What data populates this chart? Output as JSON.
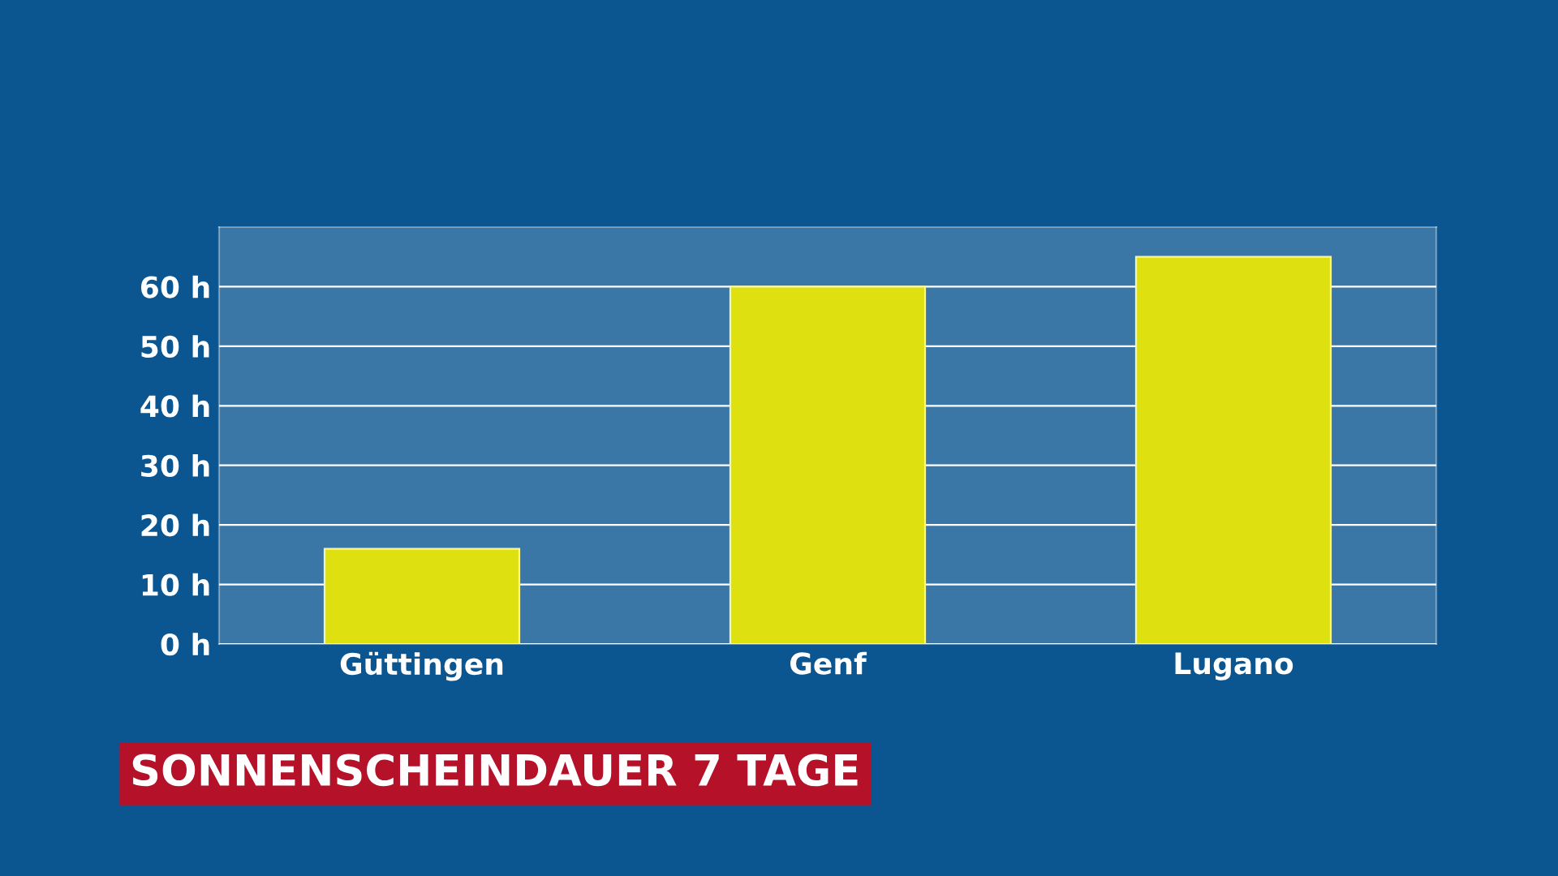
{
  "chart_data": {
    "type": "bar",
    "title": "SONNENSCHEINDAUER 7 TAGE",
    "categories": [
      "Güttingen",
      "Genf",
      "Lugano"
    ],
    "values": [
      16,
      60,
      65
    ],
    "color": "#dfe00f",
    "ylim": [
      0,
      70
    ],
    "yticks": [
      {
        "value": 0,
        "label": "0 h"
      },
      {
        "value": 10,
        "label": "10 h"
      },
      {
        "value": 20,
        "label": "20 h"
      },
      {
        "value": 30,
        "label": "30 h"
      },
      {
        "value": 40,
        "label": "40 h"
      },
      {
        "value": 50,
        "label": "50 h"
      },
      {
        "value": 60,
        "label": "60 h"
      }
    ],
    "grid": "y"
  }
}
